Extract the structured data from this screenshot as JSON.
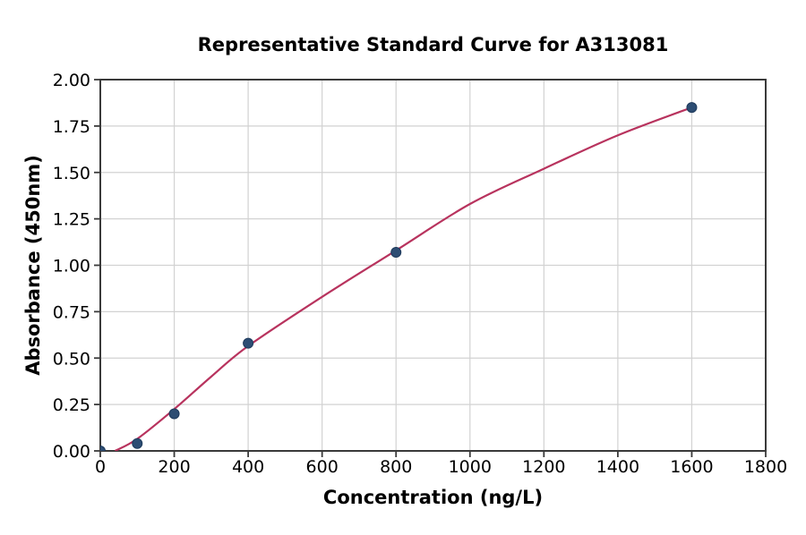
{
  "figure": {
    "background": "#ffffff"
  },
  "chart_data": {
    "type": "scatter",
    "title": "Representative Standard Curve for A313081",
    "xlabel": "Concentration (ng/L)",
    "ylabel": "Absorbance (450nm)",
    "xlim": [
      0,
      1800
    ],
    "ylim": [
      0,
      2.0
    ],
    "xticks": [
      0,
      200,
      400,
      600,
      800,
      1000,
      1200,
      1400,
      1600,
      1800
    ],
    "xtick_labels": [
      "0",
      "200",
      "400",
      "600",
      "800",
      "1000",
      "1200",
      "1400",
      "1600",
      "1800"
    ],
    "yticks": [
      0,
      0.25,
      0.5,
      0.75,
      1.0,
      1.25,
      1.5,
      1.75,
      2.0
    ],
    "ytick_labels": [
      "0.00",
      "0.25",
      "0.50",
      "0.75",
      "1.00",
      "1.25",
      "1.50",
      "1.75",
      "2.00"
    ],
    "grid": true,
    "legend": false,
    "points": [
      {
        "x": 0,
        "y": 0.0
      },
      {
        "x": 100,
        "y": 0.04
      },
      {
        "x": 200,
        "y": 0.2
      },
      {
        "x": 400,
        "y": 0.58
      },
      {
        "x": 800,
        "y": 1.07
      },
      {
        "x": 1600,
        "y": 1.85
      }
    ],
    "fit_curve": [
      [
        40,
        0.0
      ],
      [
        100,
        0.065
      ],
      [
        200,
        0.225
      ],
      [
        300,
        0.4
      ],
      [
        400,
        0.565
      ],
      [
        600,
        0.83
      ],
      [
        800,
        1.08
      ],
      [
        1000,
        1.33
      ],
      [
        1200,
        1.52
      ],
      [
        1400,
        1.7
      ],
      [
        1600,
        1.85
      ]
    ],
    "colors": {
      "curve": "#b8335e",
      "marker": "#2d4d73",
      "marker_edge": "#1e3a5c",
      "grid": "#d2d2d2",
      "spine": "#3a3a3a",
      "text": "#000000"
    }
  }
}
